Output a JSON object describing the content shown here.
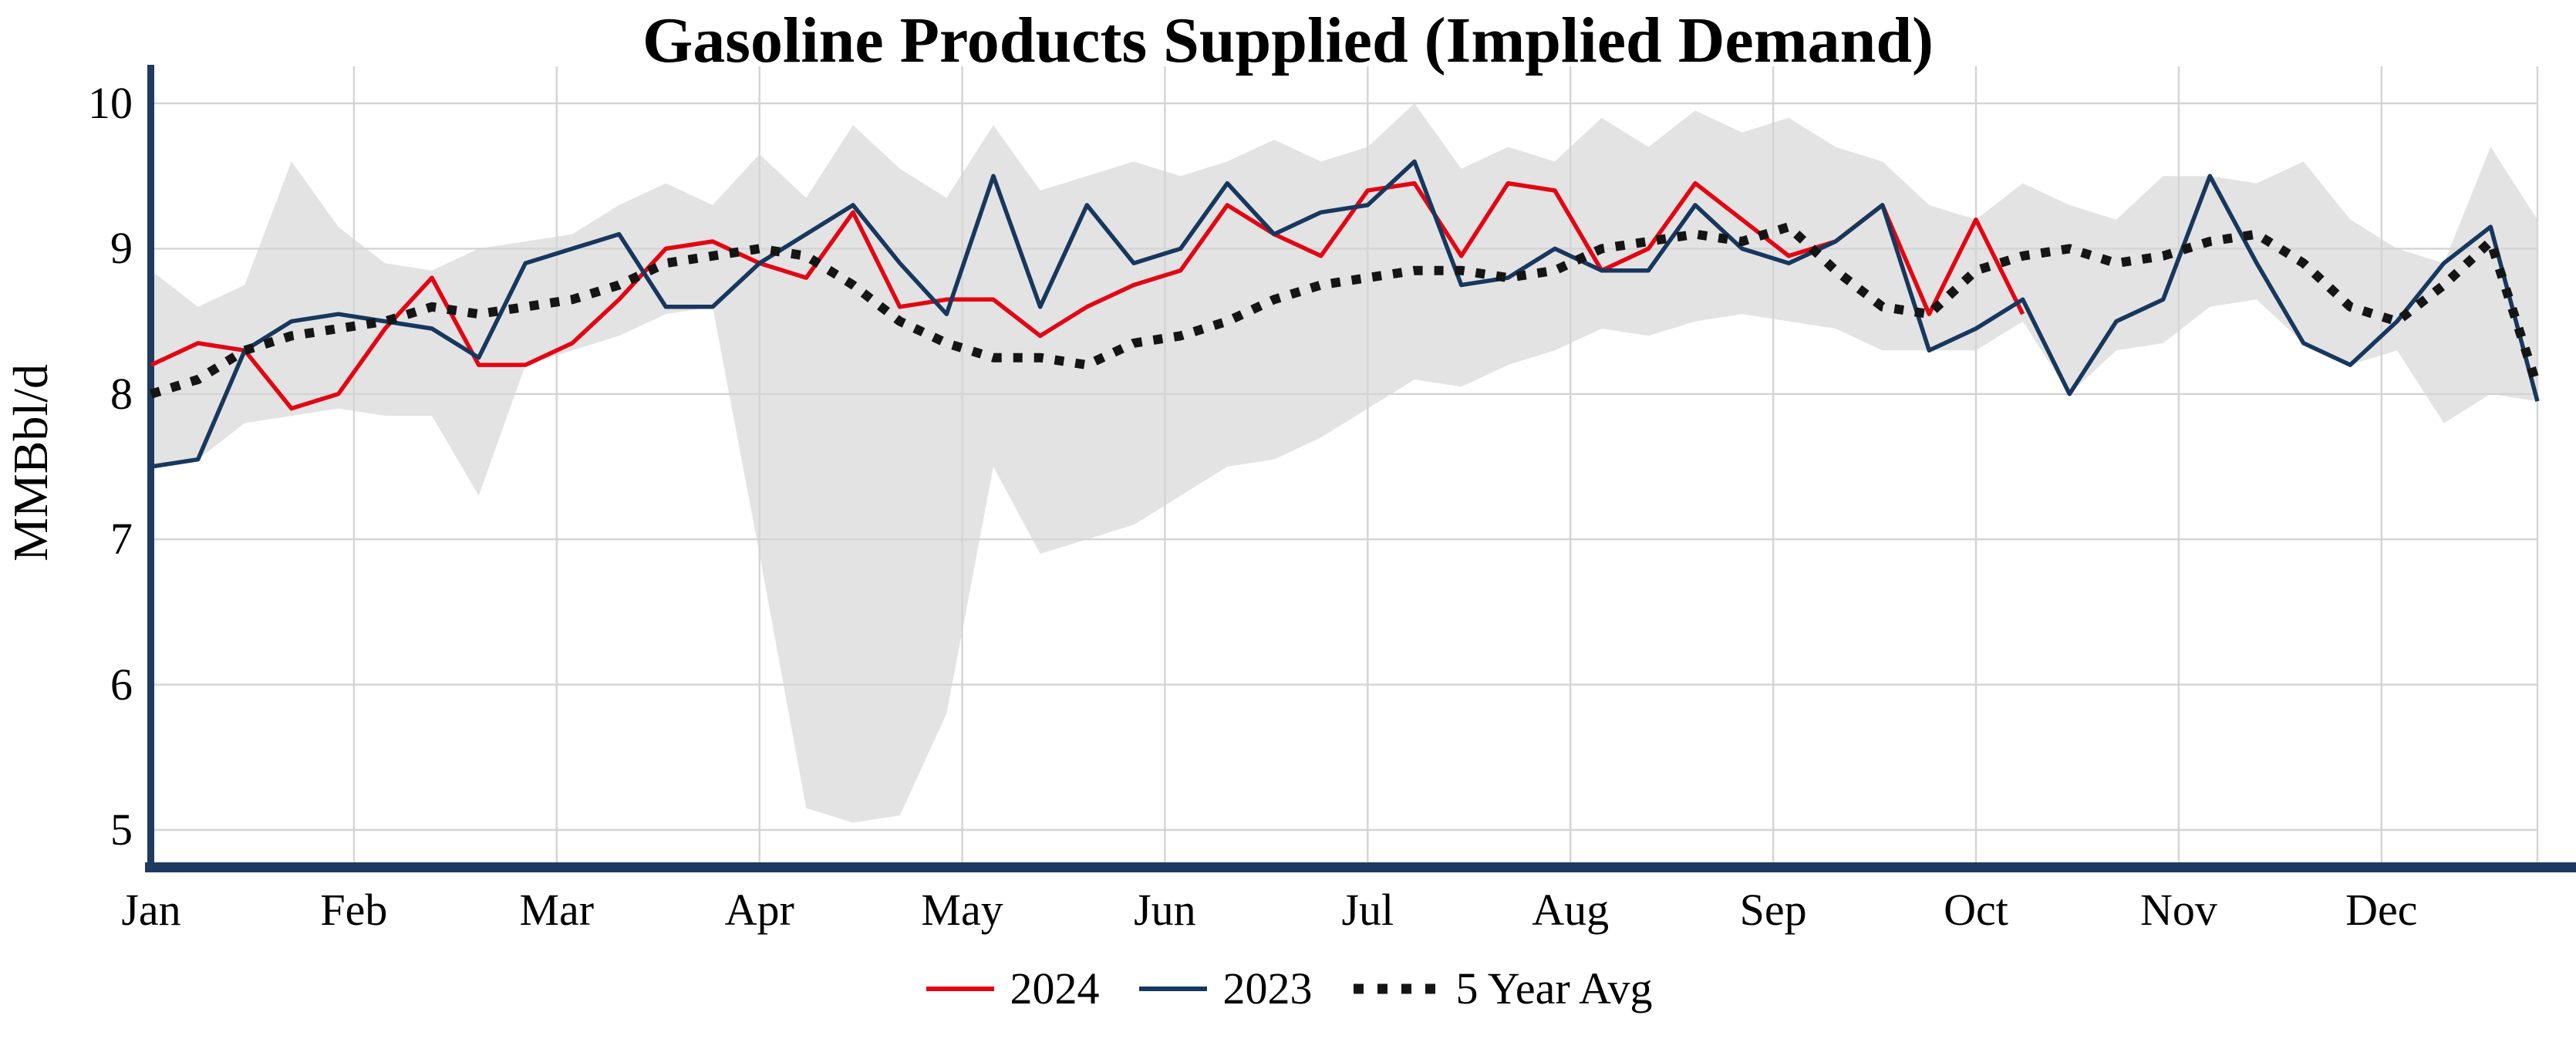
{
  "chart_data": {
    "type": "line",
    "title": "Gasoline Products Supplied (Implied Demand)",
    "ylabel": "MMBbl/d",
    "xlabel": "",
    "ylim": [
      5,
      10
    ],
    "yticks": [
      5,
      6,
      7,
      8,
      9,
      10
    ],
    "weeks": 52,
    "x_tick_labels": [
      "Jan",
      "Feb",
      "Mar",
      "Apr",
      "May",
      "Jun",
      "Jul",
      "Aug",
      "Sep",
      "Oct",
      "Nov",
      "Dec"
    ],
    "grid": true,
    "legend_position": "bottom",
    "colors": {
      "grid": "#d4d4d4",
      "axis": "#1f3a60",
      "band": "#e3e3e3",
      "background": "#ffffff"
    },
    "band": {
      "upper": [
        8.85,
        8.6,
        8.75,
        9.6,
        9.15,
        8.9,
        8.85,
        9.0,
        9.05,
        9.1,
        9.3,
        9.45,
        9.3,
        9.65,
        9.35,
        9.85,
        9.55,
        9.35,
        9.85,
        9.4,
        9.5,
        9.6,
        9.5,
        9.6,
        9.75,
        9.6,
        9.7,
        10.0,
        9.55,
        9.7,
        9.6,
        9.9,
        9.7,
        9.95,
        9.8,
        9.9,
        9.7,
        9.6,
        9.3,
        9.2,
        9.45,
        9.3,
        9.2,
        9.5,
        9.5,
        9.45,
        9.6,
        9.2,
        9.0,
        8.9,
        9.7,
        9.2
      ],
      "lower": [
        7.5,
        7.55,
        7.8,
        7.85,
        7.9,
        7.85,
        7.85,
        7.3,
        8.2,
        8.3,
        8.4,
        8.55,
        8.6,
        6.9,
        5.15,
        5.05,
        5.1,
        5.8,
        7.5,
        6.9,
        7.0,
        7.1,
        7.3,
        7.5,
        7.55,
        7.7,
        7.9,
        8.1,
        8.05,
        8.2,
        8.3,
        8.45,
        8.4,
        8.5,
        8.55,
        8.5,
        8.45,
        8.3,
        8.3,
        8.3,
        8.5,
        8.0,
        8.3,
        8.35,
        8.6,
        8.65,
        8.35,
        8.2,
        8.3,
        7.8,
        8.0,
        7.95
      ]
    },
    "series": [
      {
        "name": "2024",
        "color": "#e30613",
        "style": "solid",
        "start_week": 1,
        "values": [
          8.2,
          8.35,
          8.3,
          7.9,
          8.0,
          8.45,
          8.8,
          8.2,
          8.2,
          8.35,
          8.65,
          9.0,
          9.05,
          8.9,
          8.8,
          9.25,
          8.6,
          8.65,
          8.65,
          8.4,
          8.6,
          8.75,
          8.85,
          9.3,
          9.1,
          8.95,
          9.4,
          9.45,
          8.95,
          9.45,
          9.4,
          8.85,
          9.0,
          9.45,
          9.2,
          8.95,
          9.05,
          9.3,
          8.55,
          9.2,
          8.55
        ]
      },
      {
        "name": "2023",
        "color": "#17375e",
        "style": "solid",
        "start_week": 1,
        "values": [
          7.5,
          7.55,
          8.3,
          8.5,
          8.55,
          8.5,
          8.45,
          8.25,
          8.9,
          9.0,
          9.1,
          8.6,
          8.6,
          8.9,
          9.1,
          9.3,
          8.9,
          8.55,
          9.5,
          8.6,
          9.3,
          8.9,
          9.0,
          9.45,
          9.1,
          9.25,
          9.3,
          9.6,
          8.75,
          8.8,
          9.0,
          8.85,
          8.85,
          9.3,
          9.0,
          8.9,
          9.05,
          9.3,
          8.3,
          8.45,
          8.65,
          8.0,
          8.5,
          8.65,
          9.5,
          8.9,
          8.35,
          8.2,
          8.5,
          8.9,
          9.15,
          7.95
        ]
      },
      {
        "name": "5 Year Avg",
        "color": "#151515",
        "style": "dotted",
        "start_week": 1,
        "values": [
          8.0,
          8.1,
          8.3,
          8.4,
          8.45,
          8.5,
          8.6,
          8.55,
          8.6,
          8.65,
          8.75,
          8.9,
          8.95,
          9.0,
          8.95,
          8.75,
          8.5,
          8.35,
          8.25,
          8.25,
          8.2,
          8.35,
          8.4,
          8.5,
          8.65,
          8.75,
          8.8,
          8.85,
          8.85,
          8.8,
          8.85,
          9.0,
          9.05,
          9.1,
          9.05,
          9.15,
          8.85,
          8.6,
          8.55,
          8.85,
          8.95,
          9.0,
          8.9,
          8.95,
          9.05,
          9.1,
          8.9,
          8.6,
          8.5,
          8.75,
          9.05,
          8.05
        ]
      }
    ]
  }
}
